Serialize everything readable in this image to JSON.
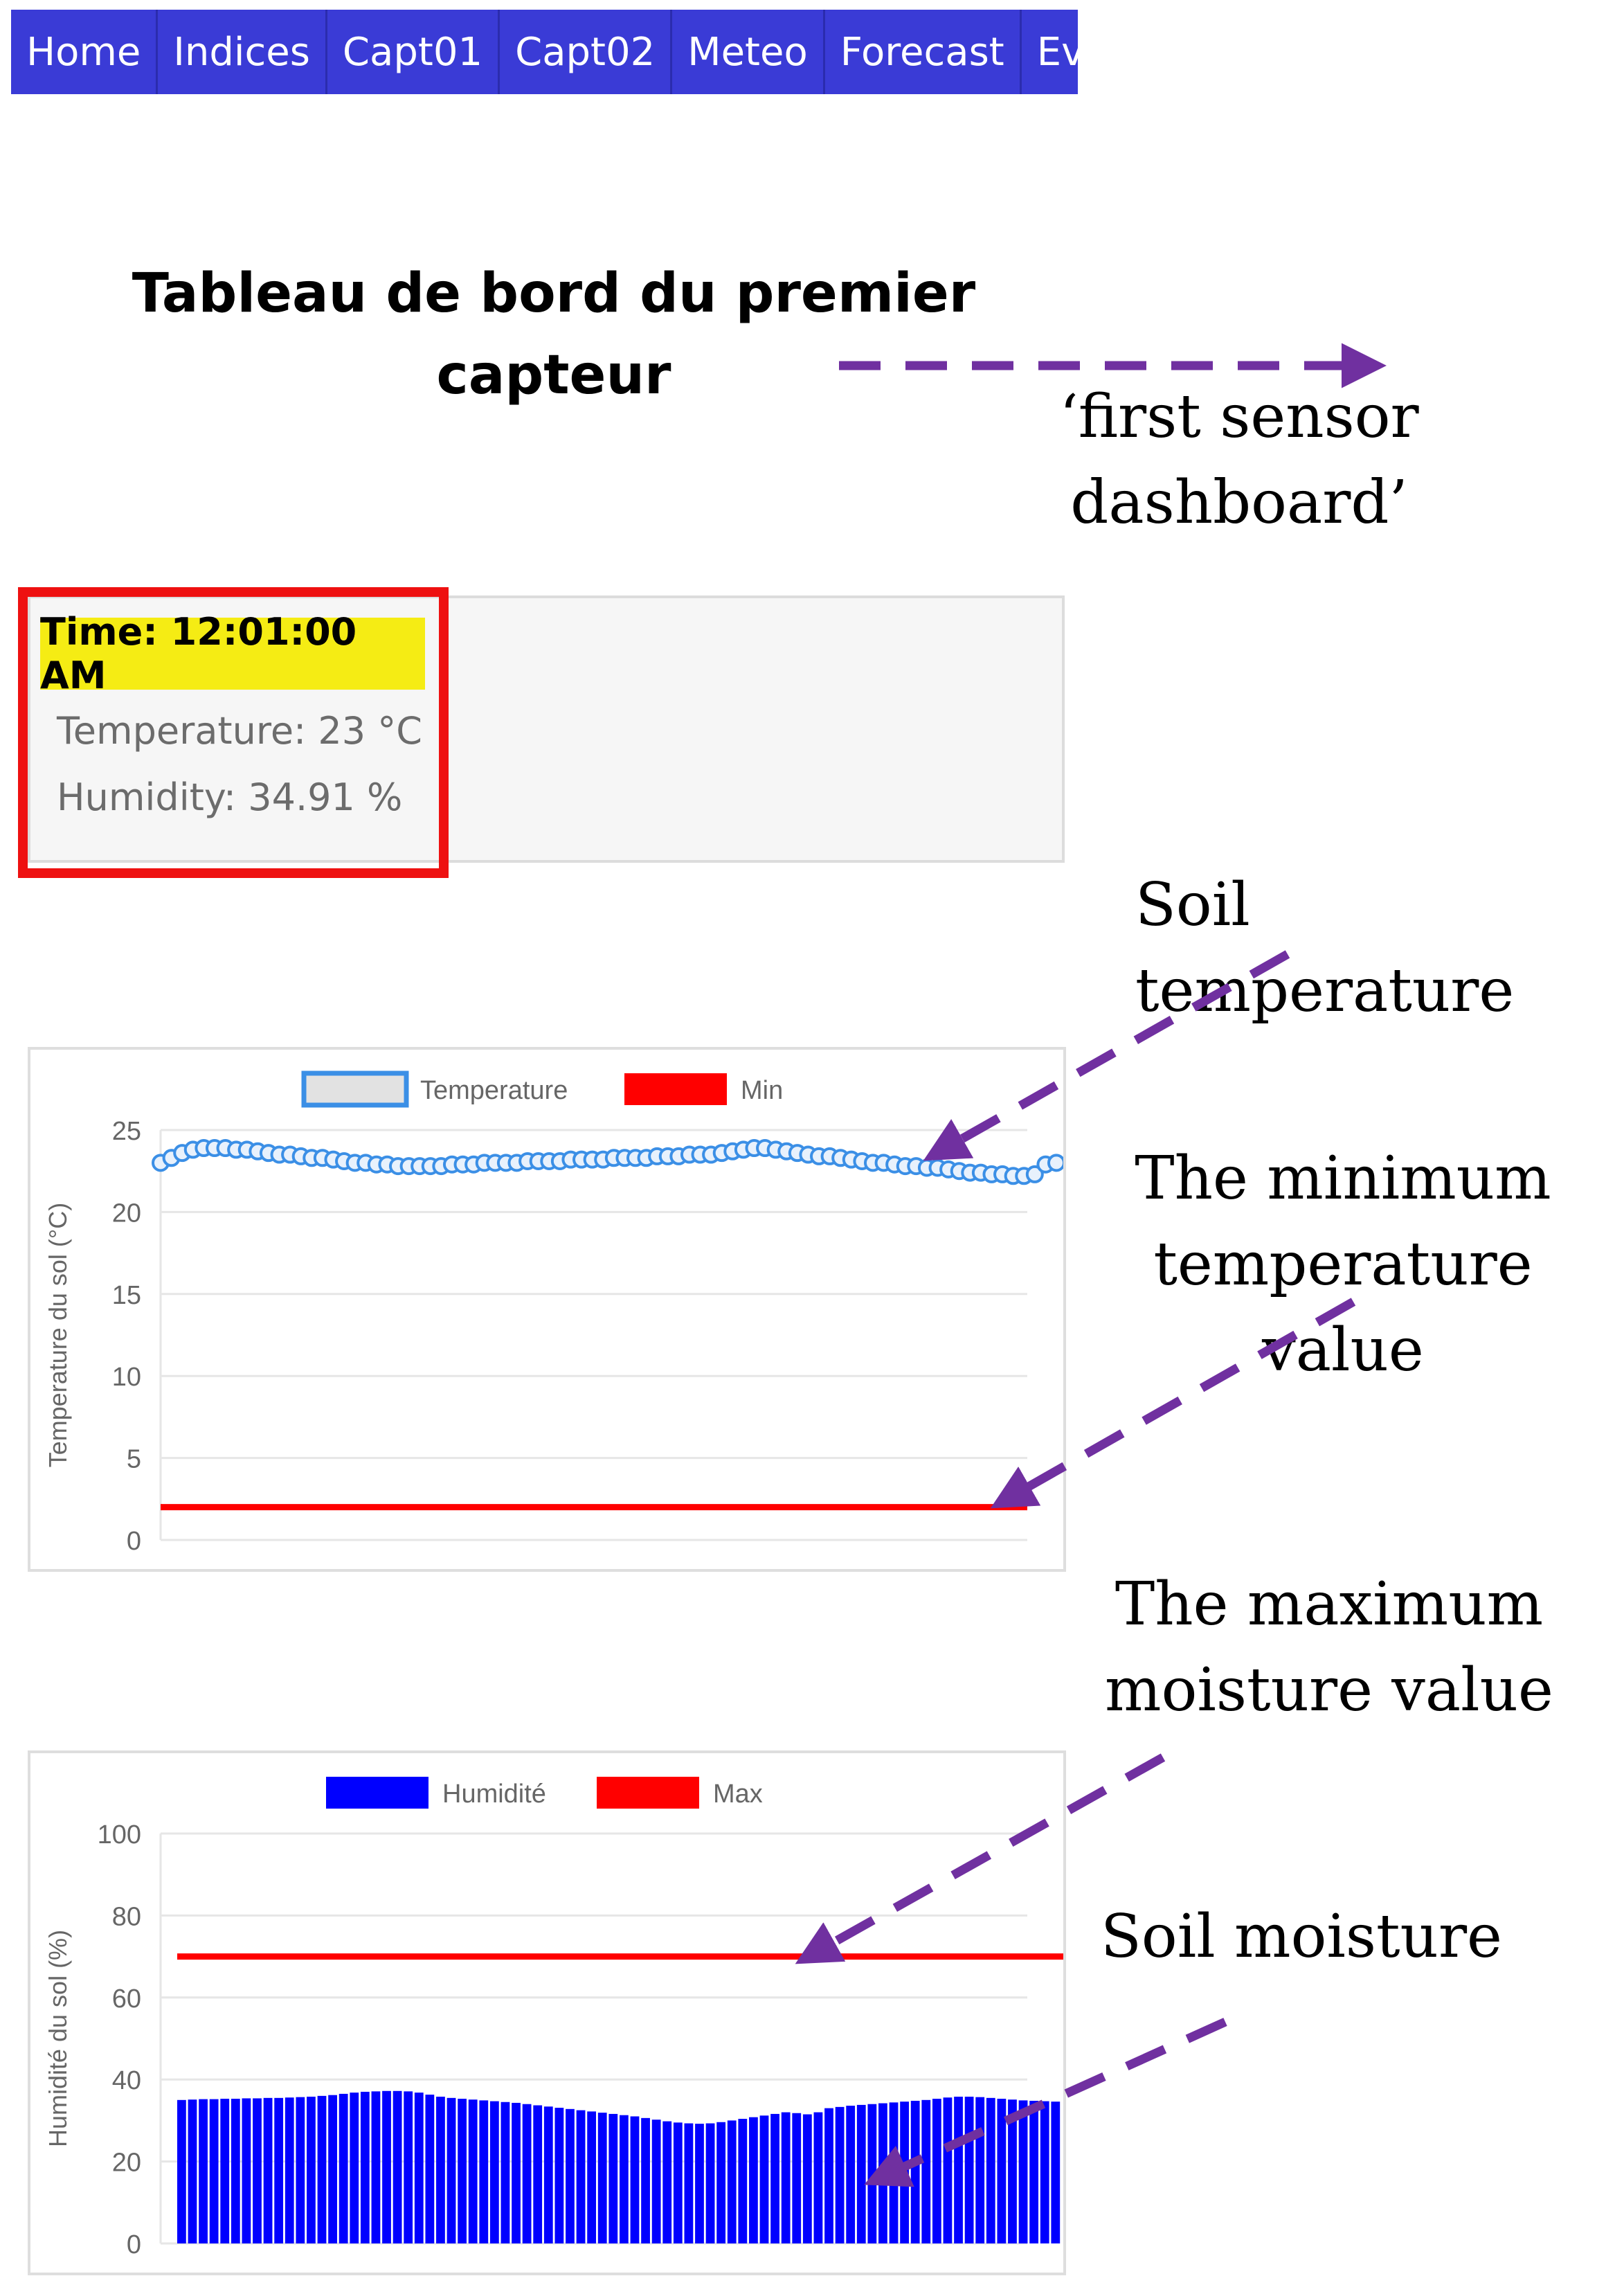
{
  "nav": {
    "items": [
      "Home",
      "Indices",
      "Capt01",
      "Capt02",
      "Meteo",
      "Forecast",
      "Evapo"
    ]
  },
  "page": {
    "title_line1": "Tableau de bord du premier",
    "title_line2": "capteur"
  },
  "annotations": {
    "title_translation_1": "‘first sensor",
    "title_translation_2": "dashboard’",
    "soil_temperature": "Soil temperature",
    "min_temp_1": "The minimum",
    "min_temp_2": "temperature value",
    "max_moist_1": "The maximum",
    "max_moist_2": "moisture value",
    "soil_moisture": "Soil moisture",
    "arrow_color": "#7030a0"
  },
  "readings": {
    "time": "Time: 12:01:00 AM",
    "temperature": "Temperature: 23 °C",
    "humidity": "Humidity: 34.91 %",
    "highlight_color": "#f5ec14",
    "box_color": "#ee1111"
  },
  "chart_data": [
    {
      "type": "line",
      "ylabel": "Temperature du sol (°C)",
      "ylim": [
        0,
        25
      ],
      "yticks": [
        0,
        5,
        10,
        15,
        20,
        25
      ],
      "grid": true,
      "legend_position": "top",
      "series": [
        {
          "name": "Temperature",
          "color": "#3b8fe6",
          "values": [
            23.0,
            23.3,
            23.6,
            23.8,
            23.9,
            23.9,
            23.9,
            23.8,
            23.8,
            23.7,
            23.6,
            23.5,
            23.5,
            23.4,
            23.3,
            23.3,
            23.2,
            23.1,
            23.0,
            23.0,
            22.9,
            22.9,
            22.8,
            22.8,
            22.8,
            22.8,
            22.8,
            22.9,
            22.9,
            22.9,
            23.0,
            23.0,
            23.0,
            23.0,
            23.1,
            23.1,
            23.1,
            23.1,
            23.2,
            23.2,
            23.2,
            23.2,
            23.3,
            23.3,
            23.3,
            23.3,
            23.4,
            23.4,
            23.4,
            23.5,
            23.5,
            23.5,
            23.6,
            23.7,
            23.8,
            23.9,
            23.9,
            23.8,
            23.7,
            23.6,
            23.5,
            23.4,
            23.4,
            23.3,
            23.2,
            23.1,
            23.0,
            23.0,
            22.9,
            22.8,
            22.8,
            22.7,
            22.7,
            22.6,
            22.5,
            22.4,
            22.4,
            22.3,
            22.3,
            22.2,
            22.2,
            22.3,
            22.9,
            23.0
          ]
        },
        {
          "name": "Min",
          "color": "#ff0000",
          "constant": 2
        }
      ]
    },
    {
      "type": "bar",
      "ylabel": "Humidité du sol (%)",
      "ylim": [
        0,
        100
      ],
      "yticks": [
        0,
        20,
        40,
        60,
        80,
        100
      ],
      "grid": true,
      "legend_position": "top",
      "series": [
        {
          "name": "Humidité",
          "color": "#0000ff",
          "values": [
            35.0,
            35.1,
            35.2,
            35.2,
            35.3,
            35.3,
            35.4,
            35.4,
            35.5,
            35.5,
            35.6,
            35.7,
            35.8,
            36.0,
            36.2,
            36.5,
            36.8,
            37.0,
            37.1,
            37.2,
            37.2,
            37.1,
            36.8,
            36.3,
            35.8,
            35.5,
            35.3,
            35.1,
            34.9,
            34.7,
            34.5,
            34.3,
            34.0,
            33.7,
            33.4,
            33.1,
            32.8,
            32.5,
            32.2,
            31.9,
            31.6,
            31.3,
            31.0,
            30.6,
            30.2,
            29.8,
            29.5,
            29.3,
            29.2,
            29.3,
            29.6,
            30.0,
            30.4,
            30.8,
            31.2,
            31.6,
            32.0,
            31.8,
            31.5,
            32.0,
            33.0,
            33.3,
            33.6,
            33.8,
            34.0,
            34.2,
            34.4,
            34.6,
            34.8,
            35.0,
            35.3,
            35.6,
            35.8,
            35.8,
            35.7,
            35.5,
            35.3,
            35.1,
            34.9,
            34.8,
            34.7,
            34.6
          ]
        },
        {
          "name": "Max",
          "color": "#ff0000",
          "constant": 70
        }
      ]
    }
  ]
}
